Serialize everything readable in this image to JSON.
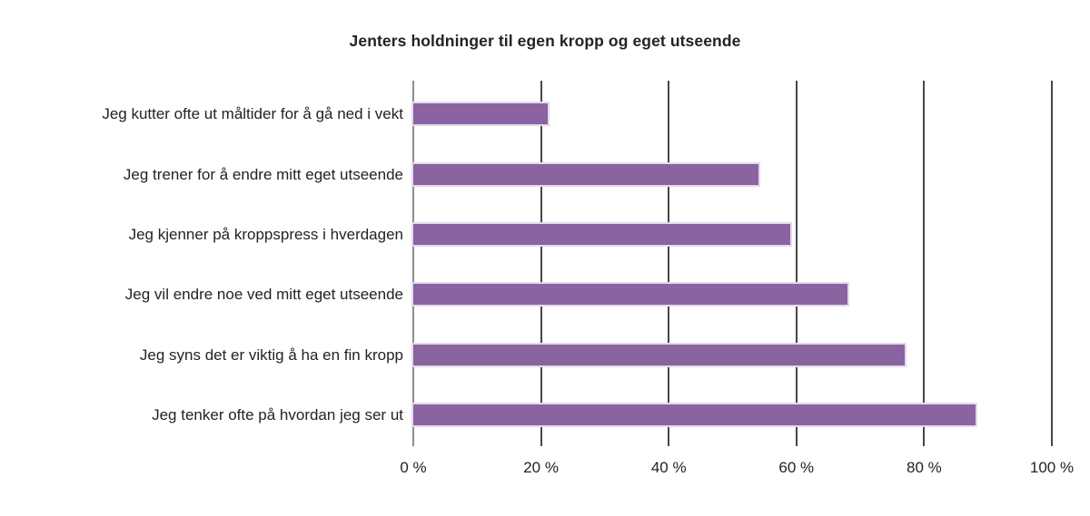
{
  "chart_data": {
    "type": "bar",
    "orientation": "horizontal",
    "title": "Jenters holdninger til egen kropp og eget utseende",
    "categories": [
      "Jeg kutter ofte ut måltider for å gå ned i vekt",
      "Jeg trener for å endre mitt eget utseende",
      "Jeg kjenner på kroppspress i hverdagen",
      "Jeg vil endre noe ved mitt eget utseende",
      "Jeg syns det er viktig å ha en fin kropp",
      "Jeg tenker ofte på hvordan jeg ser ut"
    ],
    "values": [
      21,
      54,
      59,
      68,
      77,
      88
    ],
    "unit": "%",
    "xlabel": "",
    "ylabel": "",
    "xlim": [
      0,
      100
    ],
    "x_tick_values": [
      0,
      20,
      40,
      60,
      80,
      100
    ],
    "x_tick_labels": [
      "0 %",
      "20 %",
      "40 %",
      "60 %",
      "80 %",
      "100 %"
    ],
    "grid": "vertical-major-only",
    "legend_position": "none",
    "colors": {
      "bar": "#8a63a1",
      "bar_edge": "#e4d9ec",
      "gridline": "#474747",
      "axis_line": "#8f8f8f",
      "text": "#262223"
    }
  }
}
